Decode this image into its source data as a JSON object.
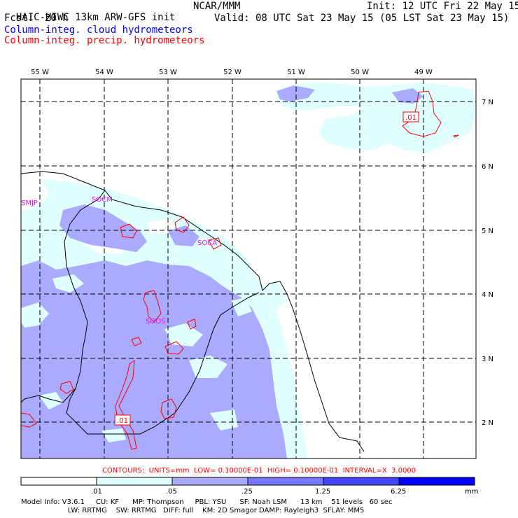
{
  "header": {
    "title": "HAIC-HIWC 13km ARW-GFS init",
    "org": "NCAR/MMM",
    "init": "Init: 12 UTC Fri 22 May 15",
    "fcst_label": "Fcst:",
    "fcst_value": "20 h",
    "valid": "Valid: 08 UTC Sat 23 May 15 (05 LST Sat 23 May 15)",
    "field_cloud": "Column-integ. cloud hydrometeors",
    "field_precip": "Column-integ. precip. hydrometeors"
  },
  "map": {
    "lon_labels": [
      "55 W",
      "54 W",
      "53 W",
      "52 W",
      "51 W",
      "50 W",
      "49 W"
    ],
    "lat_labels": [
      "7 N",
      "6 N",
      "5 N",
      "4 N",
      "3 N",
      "2 N"
    ],
    "stations": [
      "SMJP",
      "SOCM",
      "SOCA",
      "SOOS"
    ],
    "contour_labels": [
      ".01",
      ".01"
    ]
  },
  "contours_info": "CONTOURS:  UNITS=mm  LOW= 0.10000E-01  HIGH= 0.10000E-01  INTERVAL=X  3.0000",
  "colorbar": {
    "ticks": [
      ".01",
      ".05",
      ".25",
      "1.25",
      "6.25"
    ],
    "unit": "mm",
    "colors": [
      "#ffffff",
      "#e0ffff",
      "#aaaaff",
      "#7777ff",
      "#4444ff",
      "#0000ff"
    ]
  },
  "model_info": {
    "line1": "Model Info: V3.6.1     CU: KF      MP: Thompson     PBL: YSU      SF: Noah LSM      13 km    51 levels   60 sec",
    "line2": "                     LW: RRTMG    SW: RRTMG   DIFF: full    KM: 2D Smagor DAMP: Rayleigh3  SFLAY: MM5"
  }
}
